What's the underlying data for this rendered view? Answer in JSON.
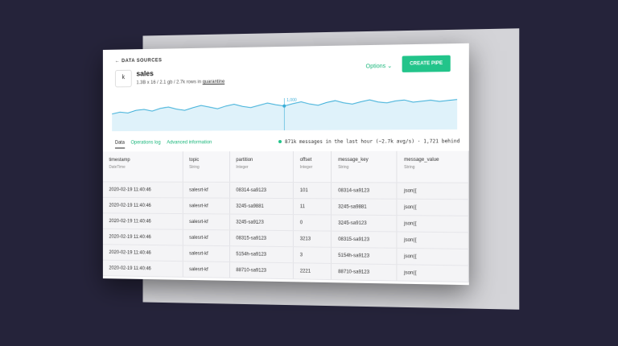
{
  "header": {
    "back": "← DATA SOURCES",
    "name": "sales",
    "meta": "1.3B x 16 / 2.1 gb / 2.7k rows in",
    "meta_link": "quarantine",
    "options": "Options",
    "create": "CREATE PIPE"
  },
  "sparkline": {
    "type": "line",
    "color": "#3aaed8",
    "values": [
      40,
      44,
      42,
      48,
      50,
      46,
      52,
      55,
      50,
      47,
      53,
      58,
      54,
      50,
      56,
      60,
      55,
      52,
      57,
      62,
      58,
      55,
      60,
      64,
      59,
      56,
      62,
      66,
      61,
      58,
      63,
      67,
      62,
      60,
      64,
      66,
      61,
      63,
      65,
      62,
      64,
      66
    ],
    "ylim": [
      0,
      80
    ],
    "tooltip": "1,000"
  },
  "tabs": [
    "Data",
    "Operations log",
    "Advanced information"
  ],
  "status": "871k messages in the last hour (~2.7k avg/s) · 1,721 behind",
  "table": {
    "columns": [
      {
        "name": "timestamp",
        "type": "DateTime"
      },
      {
        "name": "topic",
        "type": "String"
      },
      {
        "name": "partition",
        "type": "Integer"
      },
      {
        "name": "offset",
        "type": "Integer"
      },
      {
        "name": "message_key",
        "type": "String"
      },
      {
        "name": "message_value",
        "type": "String"
      }
    ],
    "rows": [
      [
        "2020-02-19 11:40:46",
        "salesrt-kf",
        "08314-sa9123",
        "101",
        "08314-sa9123",
        "json({"
      ],
      [
        "2020-02-19 11:40:46",
        "salesrt-kf",
        "3245-sa9881",
        "11",
        "3245-sa9881",
        "json({"
      ],
      [
        "2020-02-19 11:40:46",
        "salesrt-kf",
        "3245-sa9123",
        "0",
        "3245-sa9123",
        "json({"
      ],
      [
        "2020-02-19 11:40:46",
        "salesrt-kf",
        "08315-sa9123",
        "3213",
        "08315-sa9123",
        "json({"
      ],
      [
        "2020-02-19 11:40:46",
        "salesrt-kf",
        "5154h-sa9123",
        "3",
        "5154h-sa9123",
        "json({"
      ],
      [
        "2020-02-19 11:40:46",
        "salesrt-kf",
        "88710-sa9123",
        "2221",
        "88710-sa9123",
        "json({"
      ]
    ]
  }
}
